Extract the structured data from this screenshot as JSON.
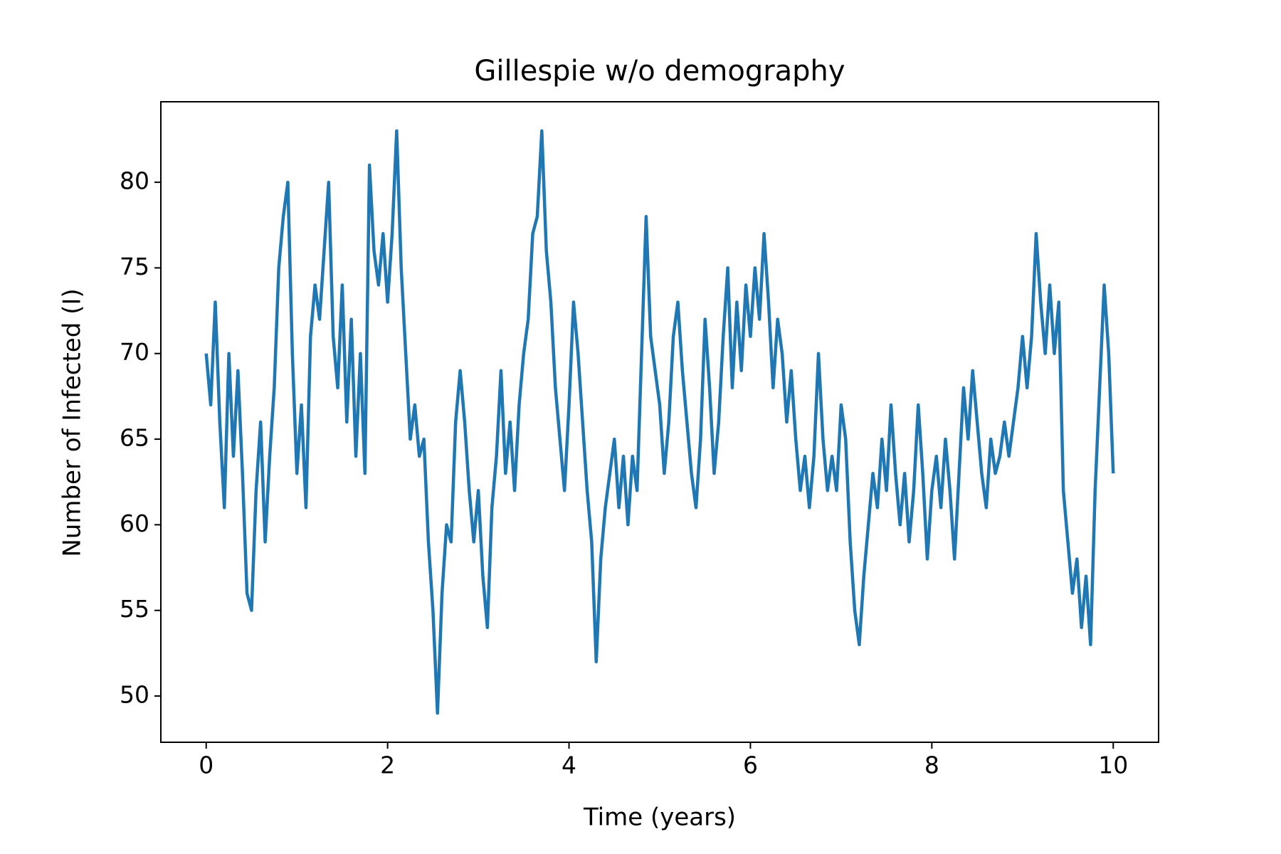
{
  "chart_data": {
    "type": "line",
    "title": "Gillespie w/o demography",
    "xlabel": "Time (years)",
    "ylabel": "Number of Infected (I)",
    "color": "#1f77b4",
    "x": [
      0,
      0.05,
      0.1,
      0.15,
      0.2,
      0.25,
      0.3,
      0.35,
      0.4,
      0.45,
      0.5,
      0.55,
      0.6,
      0.65,
      0.7,
      0.75,
      0.8,
      0.85,
      0.9,
      0.95,
      1,
      1.05,
      1.1,
      1.15,
      1.2,
      1.25,
      1.3,
      1.35,
      1.4,
      1.45,
      1.5,
      1.55,
      1.6,
      1.65,
      1.7,
      1.75,
      1.8,
      1.85,
      1.9,
      1.95,
      2,
      2.05,
      2.1,
      2.15,
      2.2,
      2.25,
      2.3,
      2.35,
      2.4,
      2.45,
      2.5,
      2.55,
      2.6,
      2.65,
      2.7,
      2.75,
      2.8,
      2.85,
      2.9,
      2.95,
      3,
      3.05,
      3.1,
      3.15,
      3.2,
      3.25,
      3.3,
      3.35,
      3.4,
      3.45,
      3.5,
      3.55,
      3.6,
      3.65,
      3.7,
      3.75,
      3.8,
      3.85,
      3.9,
      3.95,
      4,
      4.05,
      4.1,
      4.15,
      4.2,
      4.25,
      4.3,
      4.35,
      4.4,
      4.45,
      4.5,
      4.55,
      4.6,
      4.65,
      4.7,
      4.75,
      4.8,
      4.85,
      4.9,
      4.95,
      5,
      5.05,
      5.1,
      5.15,
      5.2,
      5.25,
      5.3,
      5.35,
      5.4,
      5.45,
      5.5,
      5.55,
      5.6,
      5.65,
      5.7,
      5.75,
      5.8,
      5.85,
      5.9,
      5.95,
      6,
      6.05,
      6.1,
      6.15,
      6.2,
      6.25,
      6.3,
      6.35,
      6.4,
      6.45,
      6.5,
      6.55,
      6.6,
      6.65,
      6.7,
      6.75,
      6.8,
      6.85,
      6.9,
      6.95,
      7,
      7.05,
      7.1,
      7.15,
      7.2,
      7.25,
      7.3,
      7.35,
      7.4,
      7.45,
      7.5,
      7.55,
      7.6,
      7.65,
      7.7,
      7.75,
      7.8,
      7.85,
      7.9,
      7.95,
      8,
      8.05,
      8.1,
      8.15,
      8.2,
      8.25,
      8.3,
      8.35,
      8.4,
      8.45,
      8.5,
      8.55,
      8.6,
      8.65,
      8.7,
      8.75,
      8.8,
      8.85,
      8.9,
      8.95,
      9,
      9.05,
      9.1,
      9.15,
      9.2,
      9.25,
      9.3,
      9.35,
      9.4,
      9.45,
      9.5,
      9.55,
      9.6,
      9.65,
      9.7,
      9.75,
      9.8,
      9.85,
      9.9,
      9.95,
      10
    ],
    "values": [
      70,
      67,
      73,
      66,
      61,
      70,
      64,
      69,
      63,
      56,
      55,
      62,
      66,
      59,
      64,
      68,
      75,
      78,
      80,
      70,
      63,
      67,
      61,
      71,
      74,
      72,
      76,
      80,
      71,
      68,
      74,
      66,
      72,
      64,
      70,
      63,
      81,
      76,
      74,
      77,
      73,
      77,
      83,
      75,
      70,
      65,
      67,
      64,
      65,
      59,
      55,
      49,
      56,
      60,
      59,
      66,
      69,
      66,
      62,
      59,
      62,
      57,
      54,
      61,
      64,
      69,
      63,
      66,
      62,
      67,
      70,
      72,
      77,
      78,
      83,
      76,
      73,
      68,
      65,
      62,
      67,
      73,
      70,
      66,
      62,
      59,
      52,
      58,
      61,
      63,
      65,
      61,
      64,
      60,
      64,
      62,
      70,
      78,
      71,
      69,
      67,
      63,
      66,
      71,
      73,
      69,
      66,
      63,
      61,
      65,
      72,
      68,
      63,
      66,
      71,
      75,
      68,
      73,
      69,
      74,
      71,
      75,
      72,
      77,
      73,
      68,
      72,
      70,
      66,
      69,
      65,
      62,
      64,
      61,
      64,
      70,
      65,
      62,
      64,
      62,
      67,
      65,
      59,
      55,
      53,
      57,
      60,
      63,
      61,
      65,
      62,
      67,
      63,
      60,
      63,
      59,
      62,
      67,
      63,
      58,
      62,
      64,
      61,
      65,
      62,
      58,
      63,
      68,
      65,
      69,
      66,
      63,
      61,
      65,
      63,
      64,
      66,
      64,
      66,
      68,
      71,
      68,
      71,
      77,
      73,
      70,
      74,
      70,
      73,
      62,
      59,
      56,
      58,
      54,
      57,
      53,
      62,
      68,
      74,
      70,
      63
    ],
    "xlim": [
      -0.5,
      10.5
    ],
    "ylim": [
      47.3,
      84.7
    ],
    "xticks": [
      0,
      2,
      4,
      6,
      8,
      10
    ],
    "yticks": [
      50,
      55,
      60,
      65,
      70,
      75,
      80
    ]
  }
}
